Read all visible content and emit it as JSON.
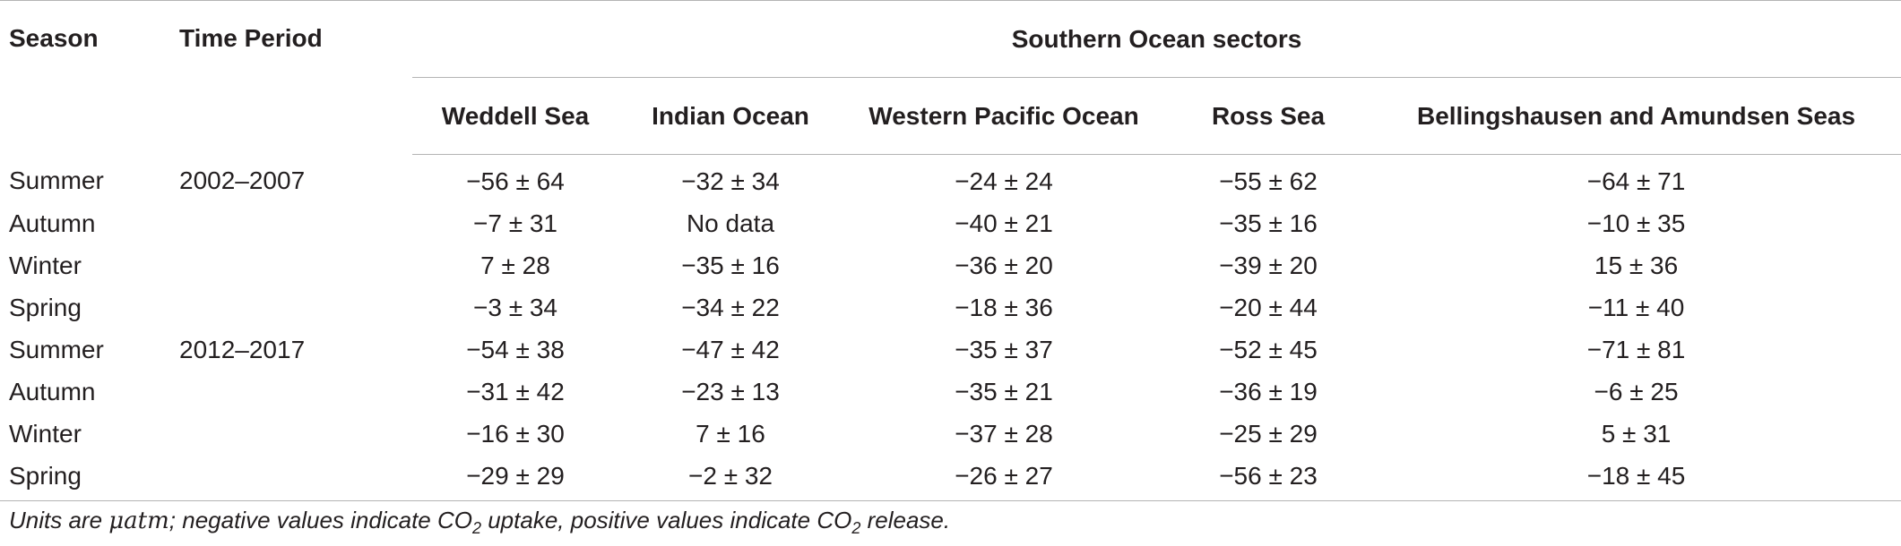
{
  "table": {
    "headers": {
      "season": "Season",
      "time_period": "Time Period",
      "sectors_group": "Southern Ocean sectors",
      "sectors": [
        "Weddell Sea",
        "Indian Ocean",
        "Western Pacific Ocean",
        "Ross Sea",
        "Bellingshausen and Amundsen Seas"
      ]
    },
    "rows": [
      {
        "season": "Summer",
        "period": "2002–2007",
        "values": [
          "−56 ± 64",
          "−32 ± 34",
          "−24 ± 24",
          "−55 ± 62",
          "−64 ± 71"
        ]
      },
      {
        "season": "Autumn",
        "period": "",
        "values": [
          "−7 ± 31",
          "No data",
          "−40 ± 21",
          "−35 ± 16",
          "−10 ± 35"
        ]
      },
      {
        "season": "Winter",
        "period": "",
        "values": [
          "7 ± 28",
          "−35 ± 16",
          "−36 ± 20",
          "−39 ± 20",
          "15 ± 36"
        ]
      },
      {
        "season": "Spring",
        "period": "",
        "values": [
          "−3 ± 34",
          "−34 ± 22",
          "−18 ± 36",
          "−20 ± 44",
          "−11 ± 40"
        ]
      },
      {
        "season": "Summer",
        "period": "2012–2017",
        "values": [
          "−54 ± 38",
          "−47 ± 42",
          "−35 ± 37",
          "−52 ± 45",
          "−71 ± 81"
        ]
      },
      {
        "season": "Autumn",
        "period": "",
        "values": [
          "−31 ± 42",
          "−23 ± 13",
          "−35 ± 21",
          "−36 ± 19",
          "−6 ± 25"
        ]
      },
      {
        "season": "Winter",
        "period": "",
        "values": [
          "−16 ± 30",
          "7 ± 16",
          "−37 ± 28",
          "−25 ± 29",
          "5 ± 31"
        ]
      },
      {
        "season": "Spring",
        "period": "",
        "values": [
          "−29 ± 29",
          "−2 ± 32",
          "−26 ± 27",
          "−56 ± 23",
          "−18 ± 45"
        ]
      }
    ]
  },
  "footnote": {
    "part1": "Units are ",
    "unit": "μatm",
    "part2": "; negative values indicate CO",
    "sub1": "2",
    "part3": " uptake, positive values indicate CO",
    "sub2": "2",
    "part4": " release."
  }
}
